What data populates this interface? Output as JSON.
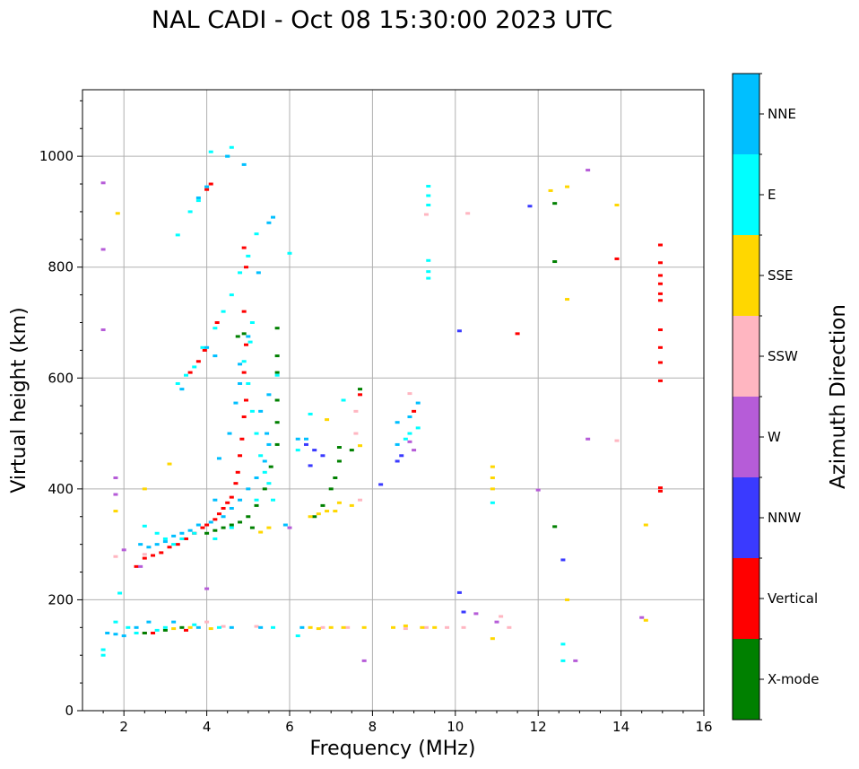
{
  "chart_data": {
    "type": "scatter",
    "title": "NAL CADI - Oct 08 15:30:00 2023 UTC",
    "xlabel": "Frequency (MHz)",
    "ylabel": "Virtual height (km)",
    "xlim": [
      1,
      16
    ],
    "ylim": [
      0,
      1120
    ],
    "xticks": [
      2,
      4,
      6,
      8,
      10,
      12,
      14,
      16
    ],
    "yticks": [
      0,
      200,
      400,
      600,
      800,
      1000
    ],
    "xtick_labels": [
      "2",
      "4",
      "6",
      "8",
      "10",
      "12",
      "14",
      "16"
    ],
    "ytick_labels": [
      "0",
      "200",
      "400",
      "600",
      "800",
      "1000"
    ],
    "grid": true,
    "colorbar": {
      "title": "Azimuth Direction",
      "categories": [
        {
          "label": "X-mode",
          "color": "#008000"
        },
        {
          "label": "Vertical",
          "color": "#ff0000"
        },
        {
          "label": "NNW",
          "color": "#3a3aff"
        },
        {
          "label": "W",
          "color": "#b65cd8"
        },
        {
          "label": "SSW",
          "color": "#ffb6c1"
        },
        {
          "label": "SSE",
          "color": "#ffd700"
        },
        {
          "label": "E",
          "color": "#00ffff"
        },
        {
          "label": "NNE",
          "color": "#00bfff"
        }
      ]
    },
    "series": [
      {
        "name": "Vertical",
        "points": [
          [
            2.3,
            260
          ],
          [
            2.5,
            275
          ],
          [
            2.7,
            280
          ],
          [
            2.9,
            285
          ],
          [
            3.1,
            295
          ],
          [
            3.3,
            300
          ],
          [
            3.5,
            310
          ],
          [
            3.7,
            320
          ],
          [
            3.9,
            330
          ],
          [
            4.0,
            335
          ],
          [
            4.2,
            345
          ],
          [
            4.3,
            355
          ],
          [
            4.4,
            365
          ],
          [
            4.5,
            375
          ],
          [
            4.6,
            385
          ],
          [
            4.7,
            410
          ],
          [
            4.75,
            430
          ],
          [
            4.8,
            460
          ],
          [
            4.85,
            490
          ],
          [
            4.9,
            530
          ],
          [
            4.95,
            560
          ],
          [
            4.9,
            610
          ],
          [
            4.95,
            660
          ],
          [
            4.9,
            720
          ],
          [
            4.95,
            800
          ],
          [
            4.9,
            835
          ],
          [
            3.6,
            610
          ],
          [
            3.8,
            630
          ],
          [
            3.95,
            650
          ],
          [
            4.25,
            700
          ],
          [
            4.1,
            950
          ],
          [
            4.0,
            940
          ],
          [
            2.5,
            140
          ],
          [
            2.7,
            140
          ],
          [
            3.5,
            145
          ],
          [
            7.7,
            570
          ],
          [
            9.0,
            540
          ],
          [
            13.9,
            815
          ],
          [
            11.5,
            680
          ],
          [
            14.95,
            840
          ],
          [
            14.95,
            808
          ],
          [
            14.95,
            785
          ],
          [
            14.95,
            770
          ],
          [
            14.95,
            752
          ],
          [
            14.95,
            740
          ],
          [
            14.95,
            687
          ],
          [
            14.95,
            655
          ],
          [
            14.95,
            628
          ],
          [
            14.95,
            595
          ],
          [
            14.95,
            402
          ],
          [
            14.95,
            396
          ]
        ]
      },
      {
        "name": "X-mode",
        "points": [
          [
            4.0,
            320
          ],
          [
            4.2,
            325
          ],
          [
            4.4,
            330
          ],
          [
            4.6,
            335
          ],
          [
            4.8,
            340
          ],
          [
            5.0,
            350
          ],
          [
            5.2,
            370
          ],
          [
            5.4,
            400
          ],
          [
            5.55,
            440
          ],
          [
            5.7,
            480
          ],
          [
            5.7,
            520
          ],
          [
            5.7,
            560
          ],
          [
            5.7,
            610
          ],
          [
            5.7,
            640
          ],
          [
            5.7,
            690
          ],
          [
            4.75,
            675
          ],
          [
            4.9,
            680
          ],
          [
            5.1,
            330
          ],
          [
            6.6,
            350
          ],
          [
            6.8,
            370
          ],
          [
            7.0,
            400
          ],
          [
            7.1,
            420
          ],
          [
            7.2,
            450
          ],
          [
            7.5,
            470
          ],
          [
            7.7,
            580
          ],
          [
            12.4,
            915
          ],
          [
            12.4,
            810
          ],
          [
            12.4,
            332
          ],
          [
            7.2,
            475
          ],
          [
            3.4,
            150
          ],
          [
            3.0,
            145
          ],
          [
            2.5,
            140
          ]
        ]
      },
      {
        "name": "NNW",
        "points": [
          [
            6.4,
            480
          ],
          [
            6.6,
            470
          ],
          [
            6.8,
            460
          ],
          [
            8.6,
            450
          ],
          [
            8.7,
            460
          ],
          [
            10.1,
            685
          ],
          [
            10.1,
            213
          ],
          [
            10.2,
            178
          ],
          [
            12.6,
            272
          ],
          [
            11.8,
            910
          ],
          [
            8.2,
            408
          ],
          [
            6.5,
            442
          ]
        ]
      },
      {
        "name": "W",
        "points": [
          [
            1.5,
            952
          ],
          [
            1.5,
            832
          ],
          [
            1.5,
            687
          ],
          [
            1.8,
            420
          ],
          [
            1.8,
            390
          ],
          [
            2.0,
            290
          ],
          [
            4.0,
            220
          ],
          [
            8.9,
            485
          ],
          [
            13.2,
            490
          ],
          [
            13.2,
            975
          ],
          [
            9.0,
            470
          ],
          [
            11.0,
            160
          ],
          [
            12.0,
            398
          ],
          [
            14.5,
            168
          ],
          [
            7.8,
            90
          ],
          [
            12.9,
            90
          ],
          [
            2.4,
            260
          ],
          [
            10.5,
            175
          ],
          [
            6.0,
            330
          ]
        ]
      },
      {
        "name": "SSW",
        "points": [
          [
            1.8,
            278
          ],
          [
            9.3,
            895
          ],
          [
            10.3,
            897
          ],
          [
            8.9,
            572
          ],
          [
            13.9,
            487
          ],
          [
            7.6,
            540
          ],
          [
            7.6,
            500
          ],
          [
            7.7,
            380
          ],
          [
            4.0,
            160
          ],
          [
            4.4,
            152
          ],
          [
            5.2,
            152
          ],
          [
            6.8,
            150
          ],
          [
            7.4,
            150
          ],
          [
            8.8,
            148
          ],
          [
            9.3,
            150
          ],
          [
            9.8,
            150
          ],
          [
            10.2,
            150
          ],
          [
            11.3,
            150
          ],
          [
            11.1,
            170
          ],
          [
            2.5,
            282
          ]
        ]
      },
      {
        "name": "SSE",
        "points": [
          [
            1.85,
            897
          ],
          [
            1.8,
            360
          ],
          [
            2.5,
            400
          ],
          [
            3.1,
            445
          ],
          [
            6.5,
            350
          ],
          [
            6.7,
            355
          ],
          [
            6.9,
            360
          ],
          [
            7.1,
            360
          ],
          [
            7.2,
            375
          ],
          [
            7.5,
            370
          ],
          [
            7.7,
            478
          ],
          [
            6.9,
            525
          ],
          [
            10.9,
            440
          ],
          [
            10.9,
            420
          ],
          [
            10.9,
            400
          ],
          [
            10.9,
            130
          ],
          [
            12.3,
            938
          ],
          [
            12.7,
            945
          ],
          [
            12.7,
            742
          ],
          [
            12.7,
            200
          ],
          [
            13.9,
            912
          ],
          [
            14.6,
            335
          ],
          [
            14.6,
            163
          ],
          [
            5.3,
            322
          ],
          [
            5.5,
            330
          ],
          [
            6.5,
            150
          ],
          [
            6.7,
            148
          ],
          [
            7.0,
            150
          ],
          [
            7.3,
            150
          ],
          [
            7.8,
            150
          ],
          [
            8.5,
            150
          ],
          [
            8.8,
            153
          ],
          [
            9.2,
            150
          ],
          [
            9.5,
            150
          ],
          [
            3.2,
            148
          ],
          [
            3.6,
            150
          ],
          [
            4.1,
            148
          ]
        ]
      },
      {
        "name": "E",
        "points": [
          [
            3.3,
            590
          ],
          [
            3.5,
            605
          ],
          [
            3.7,
            620
          ],
          [
            3.9,
            655
          ],
          [
            4.2,
            690
          ],
          [
            4.4,
            720
          ],
          [
            4.6,
            750
          ],
          [
            4.8,
            790
          ],
          [
            5.0,
            820
          ],
          [
            5.2,
            860
          ],
          [
            5.1,
            700
          ],
          [
            5.05,
            665
          ],
          [
            4.9,
            630
          ],
          [
            5.0,
            590
          ],
          [
            5.1,
            540
          ],
          [
            5.2,
            500
          ],
          [
            5.3,
            460
          ],
          [
            5.4,
            430
          ],
          [
            5.5,
            410
          ],
          [
            5.6,
            380
          ],
          [
            6.2,
            470
          ],
          [
            6.5,
            535
          ],
          [
            7.3,
            560
          ],
          [
            9.35,
            946
          ],
          [
            9.35,
            929
          ],
          [
            9.35,
            912
          ],
          [
            9.35,
            812
          ],
          [
            9.35,
            792
          ],
          [
            9.35,
            780
          ],
          [
            8.8,
            490
          ],
          [
            8.9,
            500
          ],
          [
            9.1,
            510
          ],
          [
            10.9,
            375
          ],
          [
            12.6,
            120
          ],
          [
            12.6,
            90
          ],
          [
            4.1,
            1008
          ],
          [
            4.6,
            1016
          ],
          [
            4.5,
            1000
          ],
          [
            3.3,
            858
          ],
          [
            3.6,
            900
          ],
          [
            3.8,
            920
          ],
          [
            2.5,
            333
          ],
          [
            2.8,
            320
          ],
          [
            3.0,
            310
          ],
          [
            3.2,
            300
          ],
          [
            3.4,
            310
          ],
          [
            3.7,
            320
          ],
          [
            4.2,
            310
          ],
          [
            4.6,
            330
          ],
          [
            1.5,
            110
          ],
          [
            1.5,
            100
          ],
          [
            1.8,
            160
          ],
          [
            2.1,
            150
          ],
          [
            2.3,
            140
          ],
          [
            2.8,
            145
          ],
          [
            3.0,
            150
          ],
          [
            3.7,
            155
          ],
          [
            4.3,
            150
          ],
          [
            5.6,
            150
          ],
          [
            6.2,
            135
          ],
          [
            6.0,
            825
          ],
          [
            5.7,
            605
          ],
          [
            1.9,
            212
          ],
          [
            5.2,
            380
          ]
        ]
      },
      {
        "name": "NNE",
        "points": [
          [
            2.4,
            300
          ],
          [
            2.6,
            295
          ],
          [
            2.8,
            300
          ],
          [
            3.0,
            305
          ],
          [
            3.2,
            315
          ],
          [
            3.4,
            320
          ],
          [
            3.6,
            325
          ],
          [
            3.8,
            335
          ],
          [
            4.1,
            340
          ],
          [
            4.4,
            350
          ],
          [
            4.6,
            365
          ],
          [
            4.8,
            380
          ],
          [
            5.0,
            400
          ],
          [
            5.2,
            420
          ],
          [
            5.4,
            450
          ],
          [
            5.5,
            480
          ],
          [
            5.45,
            500
          ],
          [
            5.3,
            540
          ],
          [
            5.5,
            570
          ],
          [
            4.0,
            945
          ],
          [
            3.8,
            925
          ],
          [
            4.0,
            655
          ],
          [
            4.2,
            640
          ],
          [
            4.8,
            625
          ],
          [
            3.4,
            580
          ],
          [
            4.2,
            380
          ],
          [
            4.3,
            455
          ],
          [
            4.55,
            500
          ],
          [
            4.7,
            555
          ],
          [
            4.8,
            590
          ],
          [
            5.0,
            675
          ],
          [
            5.25,
            790
          ],
          [
            5.6,
            890
          ],
          [
            5.5,
            880
          ],
          [
            4.9,
            985
          ],
          [
            4.5,
            1000
          ],
          [
            6.2,
            490
          ],
          [
            6.4,
            490
          ],
          [
            8.6,
            480
          ],
          [
            8.6,
            520
          ],
          [
            8.9,
            530
          ],
          [
            9.1,
            555
          ],
          [
            1.6,
            140
          ],
          [
            1.8,
            138
          ],
          [
            2.0,
            135
          ],
          [
            2.3,
            150
          ],
          [
            2.6,
            160
          ],
          [
            3.2,
            160
          ],
          [
            3.8,
            150
          ],
          [
            4.6,
            150
          ],
          [
            5.3,
            150
          ],
          [
            6.3,
            150
          ],
          [
            5.9,
            335
          ]
        ]
      }
    ]
  }
}
